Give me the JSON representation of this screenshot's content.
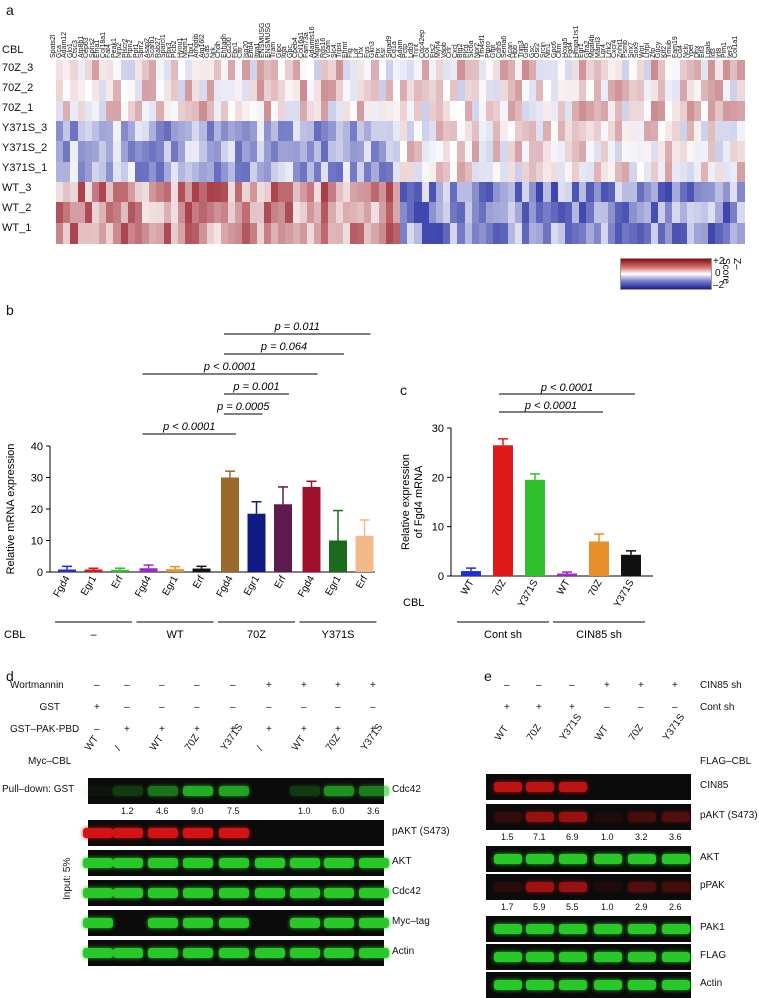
{
  "panels": {
    "a": "a",
    "b": "b",
    "c": "c",
    "d": "d",
    "e": "e"
  },
  "heatmap": {
    "row_labels": [
      "CBL",
      "70Z_3",
      "70Z_2",
      "70Z_1",
      "Y371S_3",
      "Y371S_2",
      "Y371S_1",
      "WT_3",
      "WT_2",
      "WT_1"
    ],
    "gene_labels": [
      "Spats2l",
      "Gca",
      "Adam12",
      "Glo1",
      "Ctsc3",
      "Atp8b1",
      "Cep63",
      "Spns2",
      "Efna1",
      "Col18a1",
      "Fat4",
      "Peak1",
      "Nrp2",
      "Plscr2",
      "Ptpn2",
      "Ppt1",
      "Sprr2",
      "Asap2",
      "Scarb1",
      "Rab27",
      "Sparcl1",
      "Fbx3",
      "Plcb2",
      "Hyou1",
      "Nfam1",
      "Tbx1",
      "Arhgdib",
      "Atg16l2",
      "Gas",
      "Nrk",
      "Chdh",
      "Ehhadh",
      "Cd200",
      "Fbn1",
      "Cftr",
      "Isg20",
      "Ehd4",
      "Itga1",
      "ENSMUSG",
      "ENSMUSG",
      "Tram",
      "Gipc",
      "Itga",
      "Gpc",
      "Cpeb4",
      "Col16a1",
      "Fam73a",
      "Adamts16",
      "Mgms",
      "Rgs16",
      "Vcam",
      "Slc4",
      "Trpsi",
      "Ehmt",
      "Flg",
      "Lor",
      "Lhx",
      "Fos",
      "Gkn3",
      "Ptx",
      "Ksr",
      "Smad9",
      "Cd1a",
      "Adam",
      "Pctp",
      "Ldb3",
      "Tnnt",
      "Cdc42ep",
      "Col",
      "Ets2",
      "Myh4",
      "Vapb",
      "Cnr",
      "Cxcl",
      "Btg2",
      "Plcd",
      "Slc6a",
      "Npr2",
      "Tm4sf1",
      "Ptpro",
      "Gfpt",
      "Cdh5",
      "Sema6",
      "Acan",
      "Hbb",
      "Trim3",
      "Gdf5",
      "Gsc",
      "Osr2",
      "Srcin",
      "Ntn1",
      "Gpc6",
      "Ckm",
      "Hoxa5",
      "Fgd4",
      "Hmga1rs1",
      "Egr1",
      "Gfra2",
      "Mgat4b",
      "Maml3",
      "Lgr4",
      "Lrrk2",
      "Cxcr4",
      "Znhit1",
      "Psmb",
      "Snx7",
      "Sox9",
      "Wnt",
      "Lhfpl",
      "Zfp",
      "Gucy",
      "Klf2",
      "Tmub",
      "Fam19",
      "Cd4",
      "Ncln",
      "Ypel",
      "Dhx",
      "Eif3",
      "Lgals",
      "Id3",
      "Irf8",
      "Pim1",
      "Ier3",
      "Col1a1"
    ],
    "colorbar": {
      "label": "Z–Score",
      "ticks": [
        "+2",
        "0",
        "–2"
      ]
    }
  },
  "chart_data": [
    {
      "type": "bar",
      "panel": "b",
      "ylabel": "Relative mRNA expression",
      "ylim": [
        0,
        40
      ],
      "yticks": [
        0,
        10,
        20,
        30,
        40
      ],
      "categories": [
        "Fgd4",
        "Egr1",
        "Erf",
        "Fgd4",
        "Egr1",
        "Erf",
        "Fgd4",
        "Egr1",
        "Erf",
        "Fgd4",
        "Egr1",
        "Erf"
      ],
      "values": [
        0.8,
        0.8,
        0.7,
        1.2,
        0.9,
        1.1,
        30,
        18.5,
        21.5,
        27,
        10,
        11.5
      ],
      "errors": [
        1.0,
        0.4,
        0.5,
        1.0,
        0.8,
        0.7,
        2,
        3.8,
        5.5,
        1.8,
        9.5,
        5
      ],
      "colors": [
        "#1f2fd6",
        "#d8161c",
        "#2fbf2f",
        "#9f27c4",
        "#e88e2a",
        "#111111",
        "#9a6a2a",
        "#0f1a82",
        "#5d1a4d",
        "#a0102a",
        "#1c6a1e",
        "#f2b98a"
      ],
      "group_title": "CBL",
      "groups": [
        "–",
        "WT",
        "70Z",
        "Y371S"
      ],
      "comparisons": [
        "p < 0.0001",
        "p = 0.0005",
        "p = 0.001",
        "p < 0.0001",
        "p = 0.064",
        "p = 0.011"
      ]
    },
    {
      "type": "bar",
      "panel": "c",
      "ylabel": "Relative expression\nof Fgd4 mRNA",
      "ylim": [
        0,
        30
      ],
      "yticks": [
        0,
        10,
        20,
        30
      ],
      "categories": [
        "WT",
        "70Z",
        "Y371S",
        "WT",
        "70Z",
        "Y371S"
      ],
      "values": [
        1,
        26.5,
        19.5,
        0.5,
        7,
        4.3
      ],
      "errors": [
        0.6,
        1.3,
        1.2,
        0.3,
        1.5,
        0.8
      ],
      "colors": [
        "#1f2fd6",
        "#e01a1a",
        "#2fbf2f",
        "#9f27c4",
        "#e88e2a",
        "#111111"
      ],
      "group_title": "CBL",
      "groups": [
        "Cont sh",
        "CIN85 sh"
      ],
      "comparisons": [
        "p < 0.0001",
        "p < 0.0001"
      ]
    }
  ],
  "blot_d": {
    "treatments": [
      {
        "name": "Wortmannin",
        "values": [
          "–",
          "–",
          "–",
          "–",
          "–",
          "+",
          "+",
          "+",
          "+"
        ]
      },
      {
        "name": "GST",
        "values": [
          "+",
          "–",
          "–",
          "–",
          "–",
          "–",
          "–",
          "–",
          "–"
        ]
      },
      {
        "name": "GST–PAK-PBD",
        "values": [
          "–",
          "+",
          "+",
          "+",
          "+",
          "+",
          "+",
          "+",
          "+"
        ]
      }
    ],
    "lane_header": "Myc–CBL",
    "lanes": [
      "WT",
      "/",
      "WT",
      "70Z",
      "Y371S",
      "/",
      "WT",
      "70Z",
      "Y371S"
    ],
    "pulldown_label": "Pull–down: GST",
    "input_label": "Input: 5%",
    "rows": [
      "Cdc42",
      "pAKT (S473)",
      "AKT",
      "Cdc42",
      "Myc–tag",
      "Actin"
    ],
    "quant": [
      "1.2",
      "4.6",
      "9.0",
      "7.5",
      "1.0",
      "6.0",
      "3.6"
    ]
  },
  "blot_e": {
    "treatments": [
      {
        "name": "CIN85 sh",
        "values": [
          "–",
          "–",
          "–",
          "+",
          "+",
          "+"
        ]
      },
      {
        "name": "Cont sh",
        "values": [
          "+",
          "+",
          "+",
          "–",
          "–",
          "–"
        ]
      }
    ],
    "lane_header": "FLAG–CBL",
    "lanes": [
      "WT",
      "70Z",
      "Y371S",
      "WT",
      "70Z",
      "Y371S"
    ],
    "rows": [
      "CIN85",
      "pAKT (S473)",
      "AKT",
      "pPAK",
      "PAK1",
      "FLAG",
      "Actin"
    ],
    "quant_pakt": [
      "1.5",
      "7.1",
      "6.9",
      "1.0",
      "3.2",
      "3.6"
    ],
    "quant_ppak": [
      "1.7",
      "5.9",
      "5.5",
      "1.0",
      "2.9",
      "2.6"
    ]
  }
}
